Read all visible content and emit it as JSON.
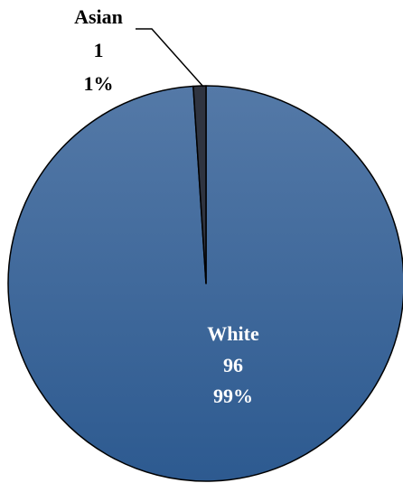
{
  "chart_data": {
    "type": "pie",
    "title": "",
    "slices": [
      {
        "label": "White",
        "value": 96,
        "percent": "99%",
        "color": "#346197"
      },
      {
        "label": "Asian",
        "value": 1,
        "percent": "1%",
        "color": "#2f3440"
      }
    ],
    "colors": {
      "gradient_top": "#5479a7",
      "gradient_bottom": "#2d5a90",
      "edge": "#000000",
      "inside_label": "#ffffff",
      "outside_label": "#000000"
    },
    "legend": "none"
  }
}
